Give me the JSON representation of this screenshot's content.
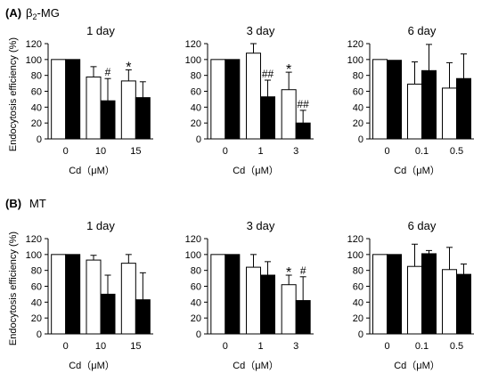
{
  "figure": {
    "panels": [
      {
        "letter": "(A)",
        "analyte_symbol": "β",
        "analyte_sub": "2",
        "analyte_rest": "-MG"
      },
      {
        "letter": "(B)",
        "analyte_symbol": "",
        "analyte_sub": "",
        "analyte_rest": "MT"
      }
    ],
    "ylabel": "Endocytosis efficiency (%)",
    "xlabel": "Cd（μM）"
  },
  "chart_data": [
    {
      "type": "bar",
      "panel": "A",
      "title": "1 day",
      "categories": [
        "0",
        "10",
        "15"
      ],
      "ylim": [
        0,
        120
      ],
      "yticks": [
        0,
        20,
        40,
        60,
        80,
        100,
        120
      ],
      "series": [
        {
          "fill": "#ffffff",
          "values": [
            100,
            78,
            73
          ],
          "errors": [
            0,
            13,
            14
          ],
          "markers": [
            "",
            "",
            "*"
          ]
        },
        {
          "fill": "#000000",
          "values": [
            100,
            48,
            52
          ],
          "errors": [
            0,
            28,
            20
          ],
          "markers": [
            "",
            "#",
            ""
          ]
        }
      ]
    },
    {
      "type": "bar",
      "panel": "A",
      "title": "3 day",
      "categories": [
        "0",
        "1",
        "3"
      ],
      "ylim": [
        0,
        120
      ],
      "yticks": [
        0,
        20,
        40,
        60,
        80,
        100,
        120
      ],
      "series": [
        {
          "fill": "#ffffff",
          "values": [
            100,
            108,
            62
          ],
          "errors": [
            0,
            12,
            22
          ],
          "markers": [
            "",
            "",
            "*"
          ]
        },
        {
          "fill": "#000000",
          "values": [
            100,
            53,
            20
          ],
          "errors": [
            0,
            21,
            16
          ],
          "markers": [
            "",
            "##",
            "##"
          ]
        }
      ]
    },
    {
      "type": "bar",
      "panel": "A",
      "title": "6 day",
      "categories": [
        "0",
        "0.1",
        "0.5"
      ],
      "ylim": [
        0,
        120
      ],
      "yticks": [
        0,
        20,
        40,
        60,
        80,
        100,
        120
      ],
      "series": [
        {
          "fill": "#ffffff",
          "values": [
            100,
            69,
            64
          ],
          "errors": [
            0,
            28,
            32
          ],
          "markers": [
            "",
            "",
            ""
          ]
        },
        {
          "fill": "#000000",
          "values": [
            99,
            86,
            76
          ],
          "errors": [
            0,
            33,
            31
          ],
          "markers": [
            "",
            "",
            ""
          ]
        }
      ]
    },
    {
      "type": "bar",
      "panel": "B",
      "title": "1 day",
      "categories": [
        "0",
        "10",
        "15"
      ],
      "ylim": [
        0,
        120
      ],
      "yticks": [
        0,
        20,
        40,
        60,
        80,
        100,
        120
      ],
      "series": [
        {
          "fill": "#ffffff",
          "values": [
            100,
            93,
            89
          ],
          "errors": [
            0,
            6,
            11
          ],
          "markers": [
            "",
            "",
            ""
          ]
        },
        {
          "fill": "#000000",
          "values": [
            100,
            50,
            43
          ],
          "errors": [
            0,
            24,
            34
          ],
          "markers": [
            "",
            "",
            ""
          ]
        }
      ]
    },
    {
      "type": "bar",
      "panel": "B",
      "title": "3 day",
      "categories": [
        "0",
        "1",
        "3"
      ],
      "ylim": [
        0,
        120
      ],
      "yticks": [
        0,
        20,
        40,
        60,
        80,
        100,
        120
      ],
      "series": [
        {
          "fill": "#ffffff",
          "values": [
            100,
            84,
            62
          ],
          "errors": [
            0,
            16,
            12
          ],
          "markers": [
            "",
            "",
            "*"
          ]
        },
        {
          "fill": "#000000",
          "values": [
            100,
            74,
            42
          ],
          "errors": [
            0,
            17,
            30
          ],
          "markers": [
            "",
            "",
            "#"
          ]
        }
      ]
    },
    {
      "type": "bar",
      "panel": "B",
      "title": "6 day",
      "categories": [
        "0",
        "0.1",
        "0.5"
      ],
      "ylim": [
        0,
        120
      ],
      "yticks": [
        0,
        20,
        40,
        60,
        80,
        100,
        120
      ],
      "series": [
        {
          "fill": "#ffffff",
          "values": [
            100,
            85,
            81
          ],
          "errors": [
            0,
            28,
            28
          ],
          "markers": [
            "",
            "",
            ""
          ]
        },
        {
          "fill": "#000000",
          "values": [
            100,
            101,
            75
          ],
          "errors": [
            0,
            4,
            13
          ],
          "markers": [
            "",
            "",
            ""
          ]
        }
      ]
    }
  ]
}
